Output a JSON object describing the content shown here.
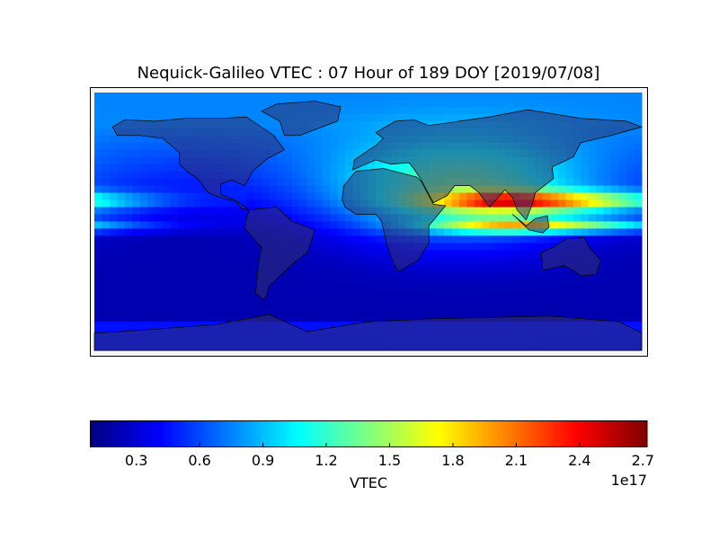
{
  "title": "Nequick-Galileo VTEC : 07 Hour of 189 DOY [2019/07/08]",
  "chart_data": {
    "type": "heatmap",
    "title": "Nequick-Galileo VTEC : 07 Hour of 189 DOY [2019/07/08]",
    "projection": "cylindrical",
    "lon_range": [
      -180,
      180
    ],
    "lat_range": [
      -90,
      90
    ],
    "colormap": "jet",
    "color_range": [
      0.08,
      2.72
    ],
    "colorbar": {
      "label": "VTEC",
      "offset_text": "1e17",
      "ticks": [
        0.3,
        0.6,
        0.9,
        1.2,
        1.5,
        1.8,
        2.1,
        2.4,
        2.7
      ],
      "tick_labels": [
        "0.3",
        "0.6",
        "0.9",
        "1.2",
        "1.5",
        "1.8",
        "2.1",
        "2.4",
        "2.7"
      ],
      "orientation": "horizontal"
    },
    "peak": {
      "region": "South/Southeast Asia",
      "lon": 100,
      "lat": 14,
      "value": 2.7
    },
    "secondary_peak": {
      "region": "Indonesia",
      "lon": 115,
      "lat": -3,
      "value": 2.2
    },
    "minimum": {
      "region": "South Atlantic / South Pacific",
      "value": 0.1
    }
  }
}
